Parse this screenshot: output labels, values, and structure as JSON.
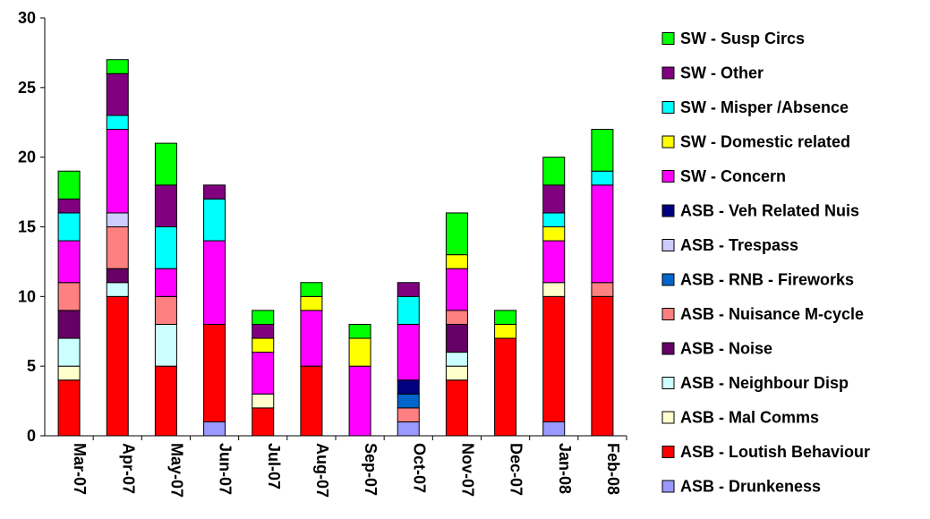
{
  "chart_data": {
    "type": "bar",
    "stacked": true,
    "ylim": [
      0,
      30
    ],
    "yticks": [
      0,
      5,
      10,
      15,
      20,
      25,
      30
    ],
    "grid": false,
    "legend_position": "right",
    "categories": [
      "Mar-07",
      "Apr-07",
      "May-07",
      "Jun-07",
      "Jul-07",
      "Aug-07",
      "Sep-07",
      "Oct-07",
      "Nov-07",
      "Dec-07",
      "Jan-08",
      "Feb-08"
    ],
    "series": [
      {
        "name": "ASB - Drunkeness",
        "color": "#9999FF",
        "values": [
          0,
          0,
          0,
          1,
          0,
          0,
          0,
          1,
          0,
          0,
          1,
          0
        ]
      },
      {
        "name": "ASB - Loutish Behaviour",
        "color": "#FF0000",
        "values": [
          4,
          10,
          5,
          7,
          2,
          5,
          0,
          0,
          4,
          7,
          9,
          10
        ]
      },
      {
        "name": "ASB - Mal Comms",
        "color": "#FFFFCC",
        "values": [
          1,
          0,
          0,
          0,
          1,
          0,
          0,
          0,
          1,
          0,
          1,
          0
        ]
      },
      {
        "name": "ASB - Neighbour Disp",
        "color": "#CCFFFF",
        "values": [
          2,
          1,
          3,
          0,
          0,
          0,
          0,
          0,
          1,
          0,
          0,
          0
        ]
      },
      {
        "name": "ASB - Noise",
        "color": "#660066",
        "values": [
          2,
          1,
          0,
          0,
          0,
          0,
          0,
          0,
          2,
          0,
          0,
          0
        ]
      },
      {
        "name": "ASB - Nuisance M-cycle",
        "color": "#FF8080",
        "values": [
          2,
          3,
          2,
          0,
          0,
          0,
          0,
          1,
          1,
          0,
          0,
          1
        ]
      },
      {
        "name": "ASB - RNB - Fireworks",
        "color": "#0066CC",
        "values": [
          0,
          0,
          0,
          0,
          0,
          0,
          0,
          1,
          0,
          0,
          0,
          0
        ]
      },
      {
        "name": "ASB - Trespass",
        "color": "#CCCCFF",
        "values": [
          0,
          1,
          0,
          0,
          0,
          0,
          0,
          0,
          0,
          0,
          0,
          0
        ]
      },
      {
        "name": "ASB - Veh Related Nuis",
        "color": "#000080",
        "values": [
          0,
          0,
          0,
          0,
          0,
          0,
          0,
          1,
          0,
          0,
          0,
          0
        ]
      },
      {
        "name": "SW - Concern",
        "color": "#FF00FF",
        "values": [
          3,
          6,
          2,
          6,
          3,
          4,
          5,
          4,
          3,
          0,
          3,
          7
        ]
      },
      {
        "name": "SW - Domestic related",
        "color": "#FFFF00",
        "values": [
          0,
          0,
          0,
          0,
          1,
          1,
          2,
          0,
          1,
          1,
          1,
          0
        ]
      },
      {
        "name": "SW - Misper /Absence",
        "color": "#00FFFF",
        "values": [
          2,
          1,
          3,
          3,
          0,
          0,
          0,
          2,
          0,
          0,
          1,
          1
        ]
      },
      {
        "name": "SW - Other",
        "color": "#800080",
        "values": [
          1,
          3,
          3,
          1,
          1,
          0,
          0,
          1,
          0,
          0,
          2,
          0
        ]
      },
      {
        "name": "SW - Susp Circs",
        "color": "#00FF00",
        "values": [
          2,
          1,
          3,
          0,
          1,
          1,
          1,
          0,
          3,
          1,
          2,
          3
        ]
      }
    ]
  }
}
